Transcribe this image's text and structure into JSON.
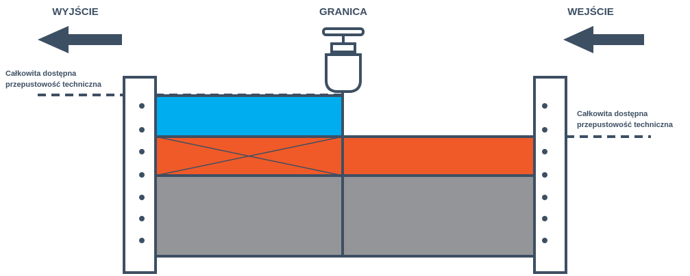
{
  "labels": {
    "exit": "WYJŚCIE",
    "border": "GRANICA",
    "entry": "WEJŚCIE"
  },
  "capacity_left": [
    "Całkowita dostępna",
    "przepustowość techniczna"
  ],
  "capacity_right": [
    "Całkowita dostępna",
    "przepustowość techniczna"
  ]
}
